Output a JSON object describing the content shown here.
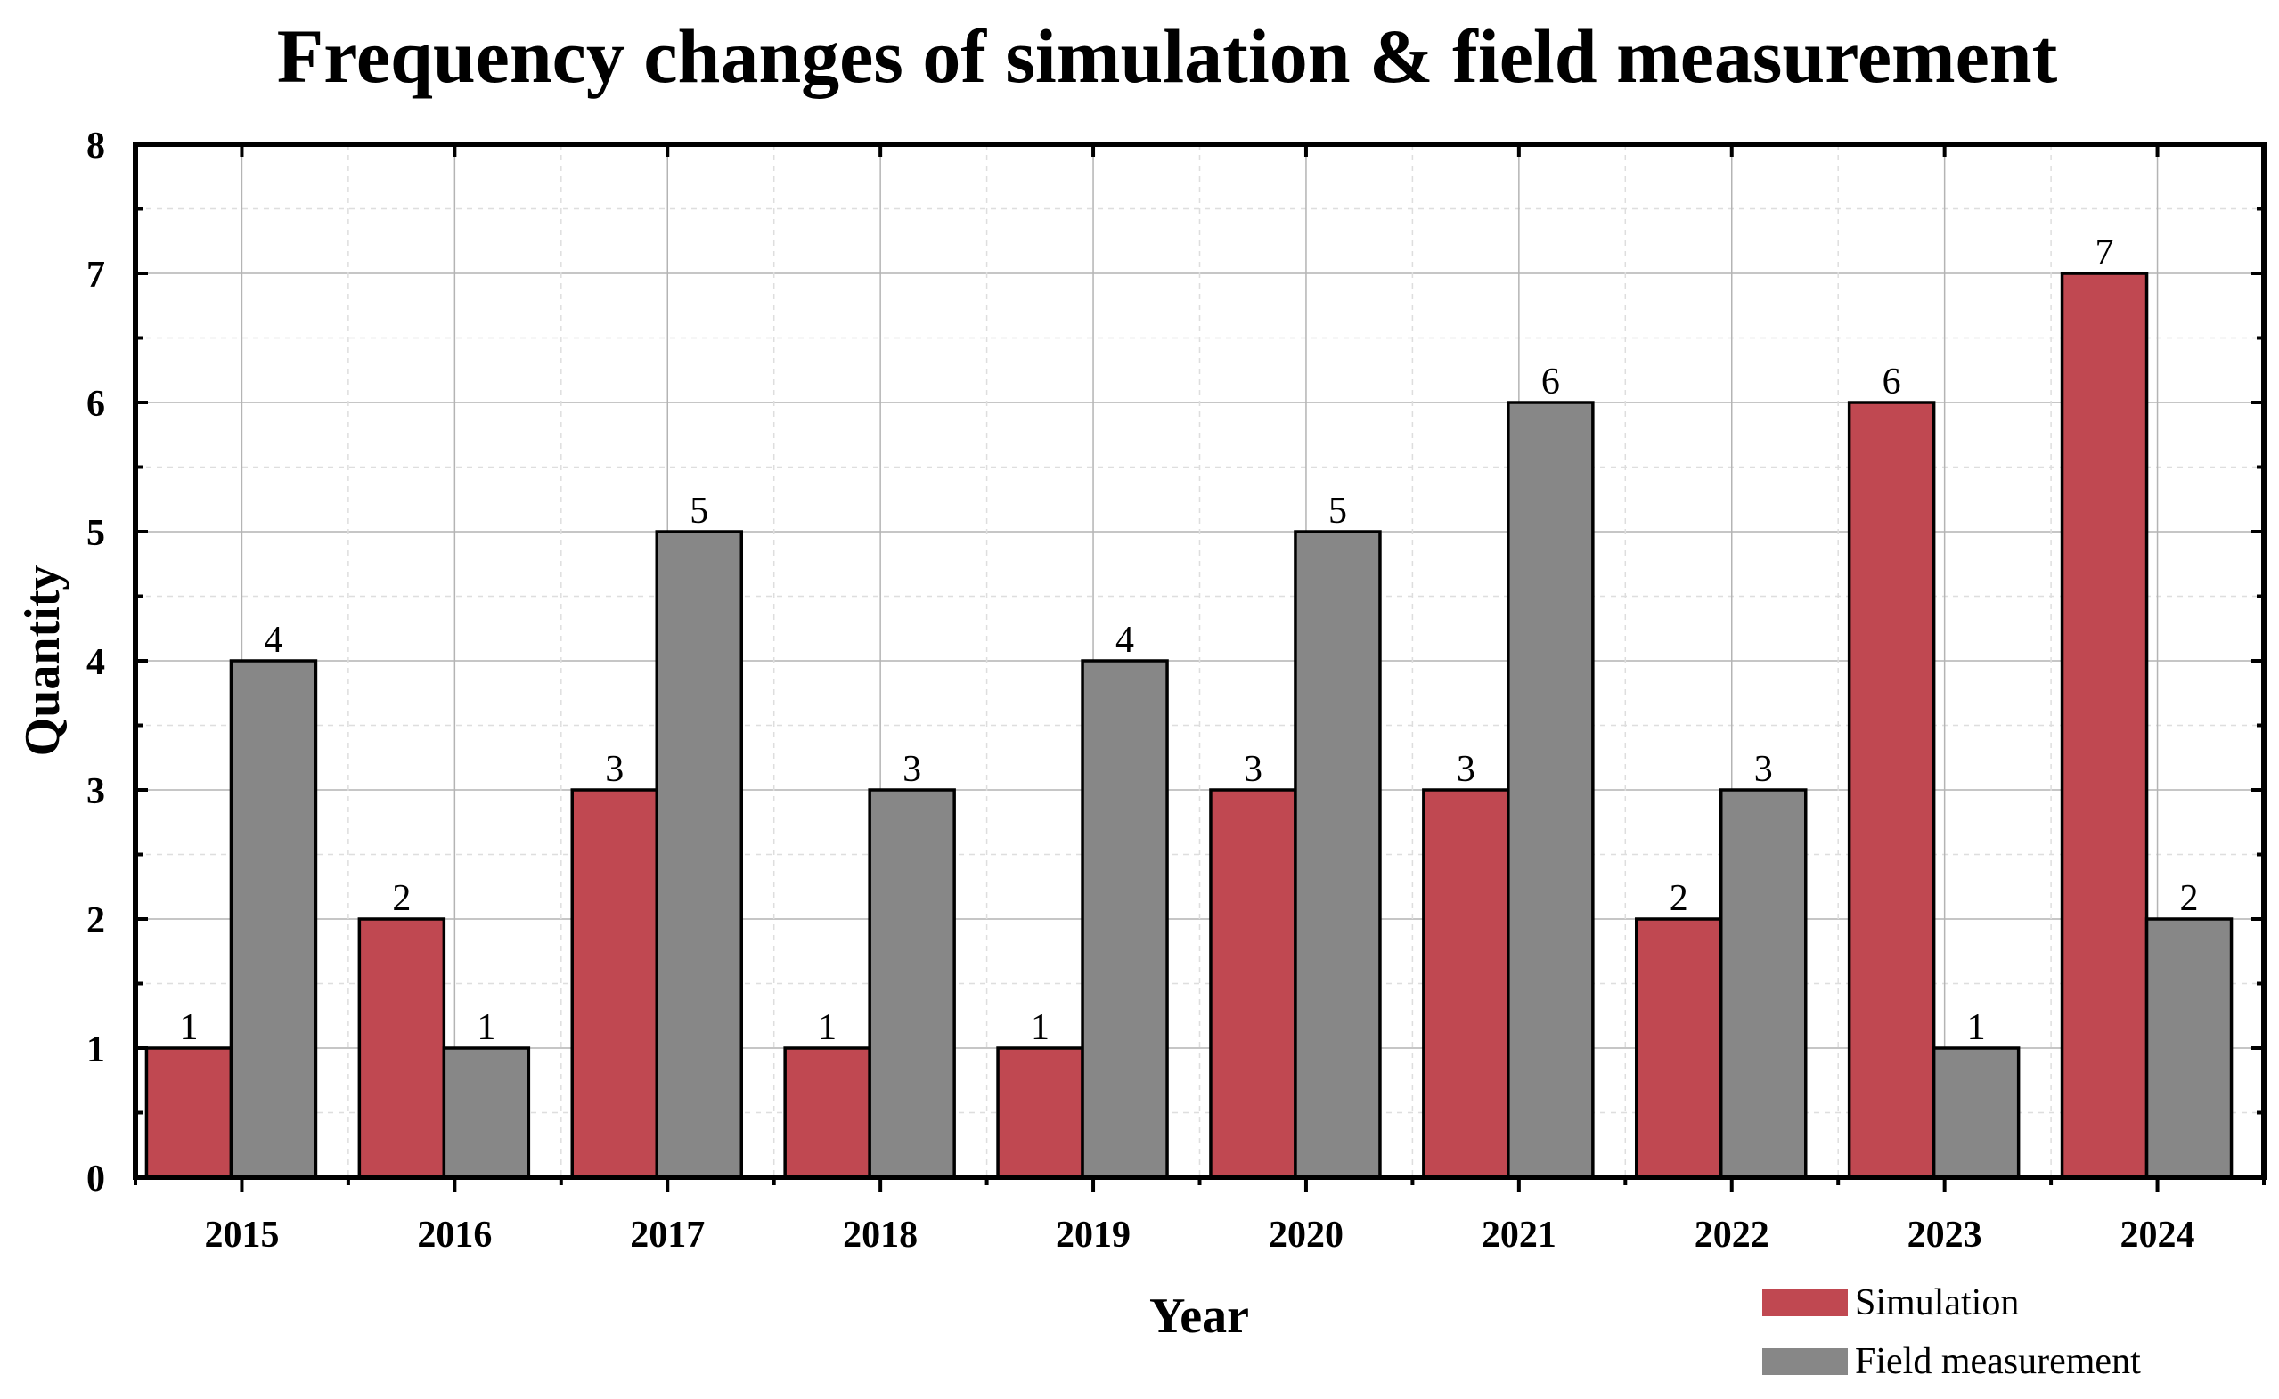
{
  "chart_data": {
    "type": "bar",
    "title": "Frequency changes of simulation & field measurement",
    "xlabel": "Year",
    "ylabel": "Quantity",
    "categories": [
      "2015",
      "2016",
      "2017",
      "2018",
      "2019",
      "2020",
      "2021",
      "2022",
      "2023",
      "2024"
    ],
    "series": [
      {
        "name": "Simulation",
        "color": "#c04851",
        "values": [
          1,
          2,
          3,
          1,
          1,
          3,
          3,
          2,
          6,
          7
        ]
      },
      {
        "name": "Field measurement",
        "color": "#878787",
        "values": [
          4,
          1,
          5,
          3,
          4,
          5,
          6,
          3,
          1,
          2
        ]
      }
    ],
    "ylim": [
      0,
      8
    ],
    "yticks": [
      0,
      1,
      2,
      3,
      4,
      5,
      6,
      7,
      8
    ],
    "grid": true,
    "legend_position": "bottom-right"
  }
}
